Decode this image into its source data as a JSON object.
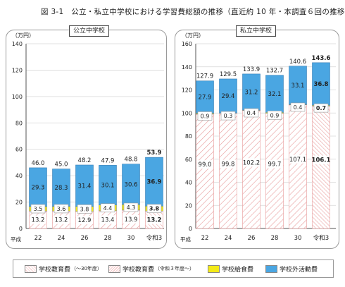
{
  "figure_title": "図 3-1　公立・私立中学校における学習費総額の推移（直近約 10 年・本調査６回の推移）",
  "legend": [
    {
      "label": "学校教育費",
      "note": "（～30年度）",
      "color": "#f4c9c9",
      "pattern": "diag-light"
    },
    {
      "label": "学校教育費",
      "note": "（令和３年度～）",
      "color": "#f4c9c9",
      "pattern": "diag-dense"
    },
    {
      "label": "学校給食費",
      "note": "",
      "color": "#f3ea18",
      "pattern": "solid"
    },
    {
      "label": "学校外活動費",
      "note": "",
      "color": "#4aa6e2",
      "pattern": "solid"
    }
  ],
  "colors": {
    "school": "#e89a9a",
    "lunch": "#f3ea18",
    "outside": "#4aa6e2"
  },
  "chart_data": [
    {
      "type": "bar",
      "title": "公立中学校",
      "ylabel": "（万円）",
      "era_label": "平成",
      "categories": [
        "22",
        "24",
        "26",
        "28",
        "30",
        "令和3"
      ],
      "ylim": [
        0,
        140
      ],
      "yticks": [
        0,
        20,
        40,
        60,
        80,
        100,
        120,
        140
      ],
      "series": [
        {
          "name": "学校教育費",
          "values": [
            13.2,
            13.2,
            12.9,
            13.4,
            13.9,
            13.2
          ]
        },
        {
          "name": "学校給食費",
          "values": [
            3.5,
            3.6,
            3.8,
            4.4,
            4.3,
            3.8
          ]
        },
        {
          "name": "学校外活動費",
          "values": [
            29.3,
            28.3,
            31.4,
            30.1,
            30.6,
            36.9
          ]
        }
      ],
      "totals": [
        46.0,
        45.0,
        48.2,
        47.9,
        48.8,
        53.9
      ],
      "highlight_last": true
    },
    {
      "type": "bar",
      "title": "私立中学校",
      "ylabel": "（万円）",
      "era_label": "平成",
      "categories": [
        "22",
        "24",
        "26",
        "28",
        "30",
        "令和3"
      ],
      "ylim": [
        0,
        160
      ],
      "yticks": [
        0,
        20,
        40,
        60,
        80,
        100,
        120,
        140,
        160
      ],
      "series": [
        {
          "name": "学校教育費",
          "values": [
            99.0,
            99.8,
            102.2,
            99.7,
            107.1,
            106.1
          ]
        },
        {
          "name": "学校給食費",
          "values": [
            0.9,
            0.3,
            0.4,
            0.9,
            0.4,
            0.7
          ]
        },
        {
          "name": "学校外活動費",
          "values": [
            27.9,
            29.4,
            31.2,
            32.1,
            33.1,
            36.8
          ]
        }
      ],
      "totals": [
        127.9,
        129.5,
        133.9,
        132.7,
        140.6,
        143.6
      ],
      "highlight_last": true
    }
  ]
}
